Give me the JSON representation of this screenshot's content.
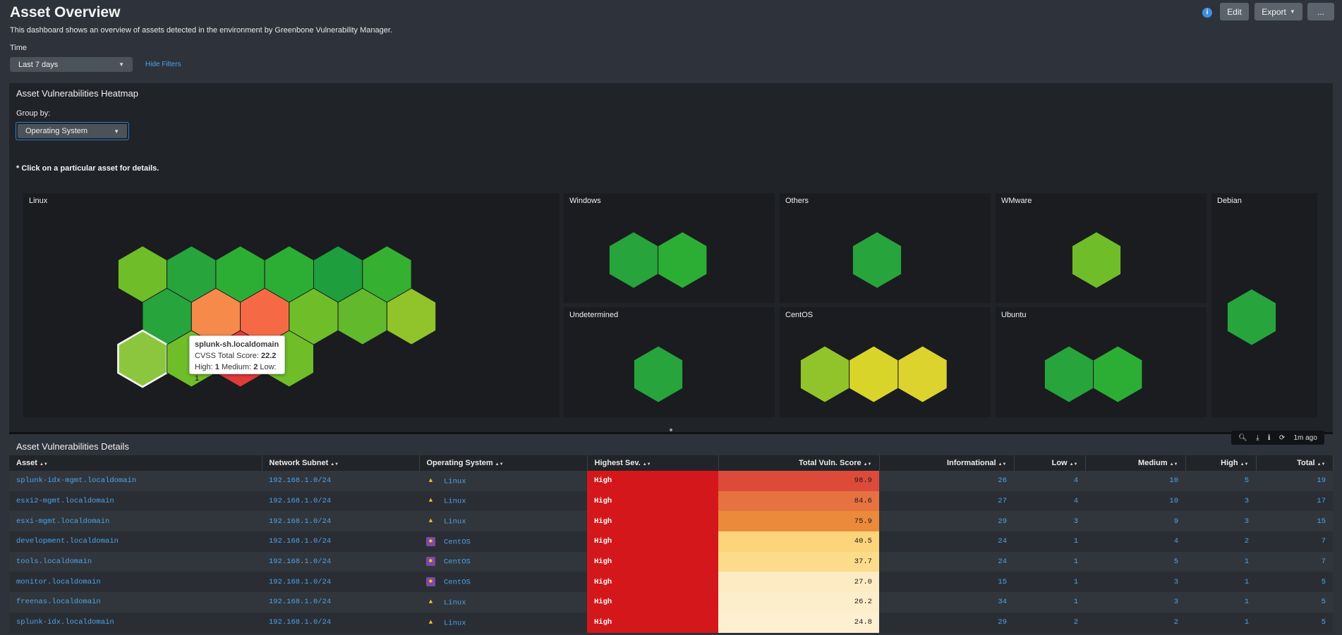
{
  "page": {
    "title": "Asset Overview",
    "subtitle": "This dashboard shows an overview of assets detected in the environment by Greenbone Vulnerability Manager.",
    "time_label": "Time",
    "time_value": "Last 7 days",
    "hide_filters": "Hide Filters"
  },
  "toolbar": {
    "info_icon": "i",
    "edit_label": "Edit",
    "export_label": "Export",
    "more_label": "..."
  },
  "heatmap": {
    "title": "Asset Vulnerabilities Heatmap",
    "group_by_label": "Group by:",
    "group_by_value": "Operating System",
    "click_note": "* Click on a particular asset for details.",
    "groups": {
      "linux": {
        "label": "Linux",
        "hex_colors": [
          "#6fbd28",
          "#27a43c",
          "#2cae34",
          "#2cae34",
          "#1e9e3c",
          "#36b031",
          "#27a43c",
          "#f58a4b",
          "#f56a44",
          "#6fbd28",
          "#62b92c",
          "#91c42a",
          "#8cc63f",
          "#6fbd28",
          "#e03b3b",
          "#6fbd28"
        ]
      },
      "windows": {
        "label": "Windows",
        "hex_colors": [
          "#27a43c",
          "#2cae34"
        ]
      },
      "others": {
        "label": "Others",
        "hex_colors": [
          "#27a43c"
        ]
      },
      "wmware": {
        "label": "WMware",
        "hex_colors": [
          "#6fbd28"
        ]
      },
      "debian": {
        "label": "Debian",
        "hex_colors": [
          "#27a43c"
        ]
      },
      "undetermined": {
        "label": "Undetermined",
        "hex_colors": [
          "#27a43c"
        ]
      },
      "centos": {
        "label": "CentOS",
        "hex_colors": [
          "#91c42a",
          "#d9d42a",
          "#dcd32f"
        ]
      },
      "ubuntu": {
        "label": "Ubuntu",
        "hex_colors": [
          "#27a43c",
          "#2cae34"
        ]
      }
    },
    "tooltip": {
      "asset": "splunk-sh.localdomain",
      "score_label": "CVSS Total Score:",
      "score": "22.2",
      "high_label": "High:",
      "high": "1",
      "medium_label": "Medium:",
      "medium": "2",
      "low_label": "Low:",
      "low": "1"
    },
    "panel_toolbar": {
      "age": "1m ago"
    }
  },
  "table": {
    "title": "Asset Vulnerabilities Details",
    "columns": [
      "Asset",
      "Network Subnet",
      "Operating System",
      "Highest Sev.",
      "Total Vuln. Score",
      "Informational",
      "Low",
      "Medium",
      "High",
      "Total"
    ],
    "rows": [
      {
        "asset": "splunk-idx-mgmt.localdomain",
        "subnet": "192.168.1.0/24",
        "os": "Linux",
        "sev": "High",
        "score": "98.9",
        "score_color": "#dd4a3a",
        "info": "26",
        "low": "4",
        "medium": "10",
        "high": "5",
        "total": "19"
      },
      {
        "asset": "esxi2-mgmt.localdomain",
        "subnet": "192.168.1.0/24",
        "os": "Linux",
        "sev": "High",
        "score": "84.6",
        "score_color": "#e57240",
        "info": "27",
        "low": "4",
        "medium": "10",
        "high": "3",
        "total": "17"
      },
      {
        "asset": "esxi-mgmt.localdomain",
        "subnet": "192.168.1.0/24",
        "os": "Linux",
        "sev": "High",
        "score": "75.9",
        "score_color": "#ec8a3c",
        "info": "29",
        "low": "3",
        "medium": "9",
        "high": "3",
        "total": "15"
      },
      {
        "asset": "development.localdomain",
        "subnet": "192.168.1.0/24",
        "os": "CentOS",
        "sev": "High",
        "score": "40.5",
        "score_color": "#fcd47a",
        "info": "24",
        "low": "1",
        "medium": "4",
        "high": "2",
        "total": "7"
      },
      {
        "asset": "tools.localdomain",
        "subnet": "192.168.1.0/24",
        "os": "CentOS",
        "sev": "High",
        "score": "37.7",
        "score_color": "#fcdb8a",
        "info": "24",
        "low": "1",
        "medium": "5",
        "high": "1",
        "total": "7"
      },
      {
        "asset": "monitor.localdomain",
        "subnet": "192.168.1.0/24",
        "os": "CentOS",
        "sev": "High",
        "score": "27.0",
        "score_color": "#fdecc3",
        "info": "15",
        "low": "1",
        "medium": "3",
        "high": "1",
        "total": "5"
      },
      {
        "asset": "freenas.localdomain",
        "subnet": "192.168.1.0/24",
        "os": "Linux",
        "sev": "High",
        "score": "26.2",
        "score_color": "#fdeecb",
        "info": "34",
        "low": "1",
        "medium": "3",
        "high": "1",
        "total": "5"
      },
      {
        "asset": "splunk-idx.localdomain",
        "subnet": "192.168.1.0/24",
        "os": "Linux",
        "sev": "High",
        "score": "24.8",
        "score_color": "#fdf0d0",
        "info": "29",
        "low": "2",
        "medium": "2",
        "high": "1",
        "total": "5"
      }
    ]
  }
}
